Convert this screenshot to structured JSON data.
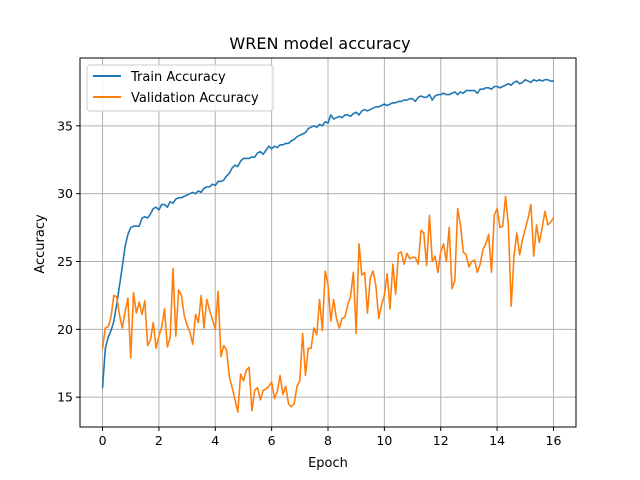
{
  "chart_data": {
    "type": "line",
    "title": "WREN model accuracy",
    "xlabel": "Epoch",
    "ylabel": "Accuracy",
    "xlim": [
      -0.8,
      16.8
    ],
    "ylim": [
      12.8,
      40.0
    ],
    "xticks": [
      0,
      2,
      4,
      6,
      8,
      10,
      12,
      14,
      16
    ],
    "yticks": [
      15,
      20,
      25,
      30,
      35
    ],
    "grid": true,
    "legend_position": "upper-left",
    "colors": {
      "train": "#1f77b4",
      "validation": "#ff7f0e",
      "grid": "#b0b0b0"
    },
    "series": [
      {
        "name": "Train Accuracy",
        "color": "#1f77b4",
        "x": [
          0,
          0.1,
          0.2,
          0.3,
          0.4,
          0.5,
          0.6,
          0.7,
          0.8,
          0.9,
          1.0,
          1.1,
          1.2,
          1.3,
          1.4,
          1.5,
          1.6,
          1.7,
          1.8,
          1.9,
          2.0,
          2.1,
          2.2,
          2.3,
          2.4,
          2.5,
          2.6,
          2.7,
          2.8,
          2.9,
          3.0,
          3.1,
          3.2,
          3.3,
          3.4,
          3.5,
          3.6,
          3.7,
          3.8,
          3.9,
          4.0,
          4.1,
          4.2,
          4.3,
          4.4,
          4.5,
          4.6,
          4.7,
          4.8,
          4.9,
          5.0,
          5.1,
          5.2,
          5.3,
          5.4,
          5.5,
          5.6,
          5.7,
          5.8,
          5.9,
          6.0,
          6.1,
          6.2,
          6.3,
          6.4,
          6.5,
          6.6,
          6.7,
          6.8,
          6.9,
          7.0,
          7.1,
          7.2,
          7.3,
          7.4,
          7.5,
          7.6,
          7.7,
          7.8,
          7.9,
          8.0,
          8.1,
          8.2,
          8.3,
          8.4,
          8.5,
          8.6,
          8.7,
          8.8,
          8.9,
          9.0,
          9.1,
          9.2,
          9.3,
          9.4,
          9.5,
          9.6,
          9.7,
          9.8,
          9.9,
          10.0,
          10.1,
          10.2,
          10.3,
          10.4,
          10.5,
          10.6,
          10.7,
          10.8,
          10.9,
          11.0,
          11.1,
          11.2,
          11.3,
          11.4,
          11.5,
          11.6,
          11.7,
          11.8,
          11.9,
          12.0,
          12.1,
          12.2,
          12.3,
          12.4,
          12.5,
          12.6,
          12.7,
          12.8,
          12.9,
          13.0,
          13.1,
          13.2,
          13.3,
          13.4,
          13.5,
          13.6,
          13.7,
          13.8,
          13.9,
          14.0,
          14.1,
          14.2,
          14.3,
          14.4,
          14.5,
          14.6,
          14.7,
          14.8,
          14.9,
          15.0,
          15.1,
          15.2,
          15.3,
          15.4,
          15.5,
          15.6,
          15.7,
          15.8,
          15.9,
          16.0
        ],
        "y": [
          15.7,
          18.6,
          19.4,
          19.9,
          20.6,
          21.8,
          23.2,
          24.6,
          26.1,
          27.0,
          27.5,
          27.6,
          27.6,
          27.6,
          28.2,
          28.3,
          28.2,
          28.5,
          28.9,
          29.0,
          28.8,
          29.2,
          29.2,
          29.0,
          29.4,
          29.3,
          29.6,
          29.7,
          29.7,
          29.8,
          29.9,
          30.0,
          30.1,
          30.0,
          30.2,
          30.1,
          30.4,
          30.5,
          30.5,
          30.7,
          30.6,
          30.9,
          30.9,
          31.0,
          31.3,
          31.5,
          31.9,
          32.1,
          32.0,
          32.4,
          32.6,
          32.6,
          32.6,
          32.7,
          32.7,
          33.0,
          33.1,
          32.9,
          33.2,
          33.5,
          33.3,
          33.5,
          33.4,
          33.6,
          33.6,
          33.7,
          33.7,
          33.9,
          34.0,
          34.2,
          34.3,
          34.4,
          34.5,
          34.8,
          34.9,
          35.0,
          34.9,
          35.1,
          35.0,
          35.3,
          35.2,
          35.8,
          35.5,
          35.6,
          35.7,
          35.6,
          35.8,
          35.8,
          35.7,
          35.9,
          36.0,
          35.8,
          36.1,
          36.2,
          36.1,
          36.2,
          36.3,
          36.4,
          36.4,
          36.5,
          36.6,
          36.5,
          36.6,
          36.7,
          36.7,
          36.8,
          36.8,
          36.9,
          36.9,
          37.0,
          37.0,
          36.8,
          37.1,
          37.2,
          37.1,
          37.1,
          37.3,
          36.9,
          37.2,
          37.3,
          37.3,
          37.4,
          37.3,
          37.3,
          37.4,
          37.5,
          37.3,
          37.5,
          37.4,
          37.6,
          37.6,
          37.6,
          37.6,
          37.4,
          37.7,
          37.7,
          37.8,
          37.8,
          37.7,
          37.9,
          37.9,
          37.8,
          37.9,
          38.0,
          38.1,
          38.0,
          38.2,
          38.3,
          38.1,
          38.2,
          38.4,
          38.3,
          38.2,
          38.4,
          38.3,
          38.4,
          38.3,
          38.4,
          38.4,
          38.3,
          38.3
        ]
      },
      {
        "name": "Validation Accuracy",
        "color": "#ff7f0e",
        "x": [
          0,
          0.1,
          0.2,
          0.3,
          0.4,
          0.5,
          0.6,
          0.7,
          0.8,
          0.9,
          1.0,
          1.1,
          1.2,
          1.3,
          1.4,
          1.5,
          1.6,
          1.7,
          1.8,
          1.9,
          2.0,
          2.1,
          2.2,
          2.3,
          2.4,
          2.5,
          2.6,
          2.7,
          2.8,
          2.9,
          3.0,
          3.1,
          3.2,
          3.3,
          3.4,
          3.5,
          3.6,
          3.7,
          3.8,
          3.9,
          4.0,
          4.1,
          4.2,
          4.3,
          4.4,
          4.5,
          4.6,
          4.7,
          4.8,
          4.9,
          5.0,
          5.1,
          5.2,
          5.3,
          5.4,
          5.5,
          5.6,
          5.7,
          5.8,
          5.9,
          6.0,
          6.1,
          6.2,
          6.3,
          6.4,
          6.5,
          6.6,
          6.7,
          6.8,
          6.9,
          7.0,
          7.1,
          7.2,
          7.3,
          7.4,
          7.5,
          7.6,
          7.7,
          7.8,
          7.9,
          8.0,
          8.1,
          8.2,
          8.3,
          8.4,
          8.5,
          8.6,
          8.7,
          8.8,
          8.9,
          9.0,
          9.1,
          9.2,
          9.3,
          9.4,
          9.5,
          9.6,
          9.7,
          9.8,
          9.9,
          10.0,
          10.1,
          10.2,
          10.3,
          10.4,
          10.5,
          10.6,
          10.7,
          10.8,
          10.9,
          11.0,
          11.1,
          11.2,
          11.3,
          11.4,
          11.5,
          11.6,
          11.7,
          11.8,
          11.9,
          12.0,
          12.1,
          12.2,
          12.3,
          12.4,
          12.5,
          12.6,
          12.7,
          12.8,
          12.9,
          13.0,
          13.1,
          13.2,
          13.3,
          13.4,
          13.5,
          13.6,
          13.7,
          13.8,
          13.9,
          14.0,
          14.1,
          14.2,
          14.3,
          14.4,
          14.5,
          14.6,
          14.7,
          14.8,
          14.9,
          15.0,
          15.1,
          15.2,
          15.3,
          15.4,
          15.5,
          15.6,
          15.7,
          15.8,
          15.9,
          16.0
        ],
        "y": [
          18.6,
          20.1,
          20.2,
          20.9,
          22.5,
          22.4,
          21.1,
          20.1,
          21.3,
          22.3,
          17.9,
          22.7,
          21.2,
          22.0,
          21.1,
          22.1,
          18.8,
          19.2,
          20.5,
          18.6,
          19.5,
          20.2,
          21.5,
          18.7,
          19.4,
          24.5,
          19.5,
          22.9,
          22.5,
          21.0,
          20.3,
          19.8,
          18.9,
          21.1,
          20.5,
          22.5,
          20.1,
          22.2,
          21.4,
          20.7,
          20.0,
          22.8,
          18.0,
          18.8,
          18.5,
          16.5,
          15.7,
          14.8,
          13.9,
          16.7,
          16.2,
          17.0,
          17.2,
          14.0,
          15.5,
          15.7,
          14.8,
          15.5,
          15.6,
          15.8,
          16.1,
          14.9,
          15.4,
          16.6,
          15.2,
          15.8,
          14.5,
          14.3,
          14.5,
          15.8,
          16.2,
          19.7,
          16.6,
          18.6,
          18.6,
          20.1,
          19.6,
          22.2,
          19.9,
          24.3,
          23.3,
          20.6,
          22.2,
          20.8,
          20.1,
          20.8,
          20.9,
          21.8,
          22.4,
          24.2,
          19.7,
          26.3,
          24.0,
          24.2,
          21.2,
          23.8,
          24.3,
          23.2,
          20.8,
          21.8,
          22.5,
          24.1,
          21.5,
          24.8,
          22.6,
          25.6,
          25.7,
          24.8,
          25.6,
          25.2,
          25.3,
          25.3,
          24.8,
          27.3,
          27.1,
          24.7,
          28.4,
          25.0,
          25.4,
          24.2,
          25.7,
          26.3,
          25.0,
          27.5,
          23.0,
          23.6,
          28.9,
          27.7,
          25.7,
          25.5,
          24.6,
          25.0,
          25.1,
          24.2,
          24.8,
          25.9,
          26.3,
          27.0,
          24.2,
          28.4,
          28.9,
          27.5,
          27.6,
          29.8,
          27.7,
          21.7,
          25.4,
          27.1,
          25.5,
          26.6,
          27.4,
          28.2,
          29.2,
          25.4,
          27.7,
          26.4,
          27.5,
          28.7,
          27.7,
          27.9,
          28.2
        ]
      }
    ]
  }
}
